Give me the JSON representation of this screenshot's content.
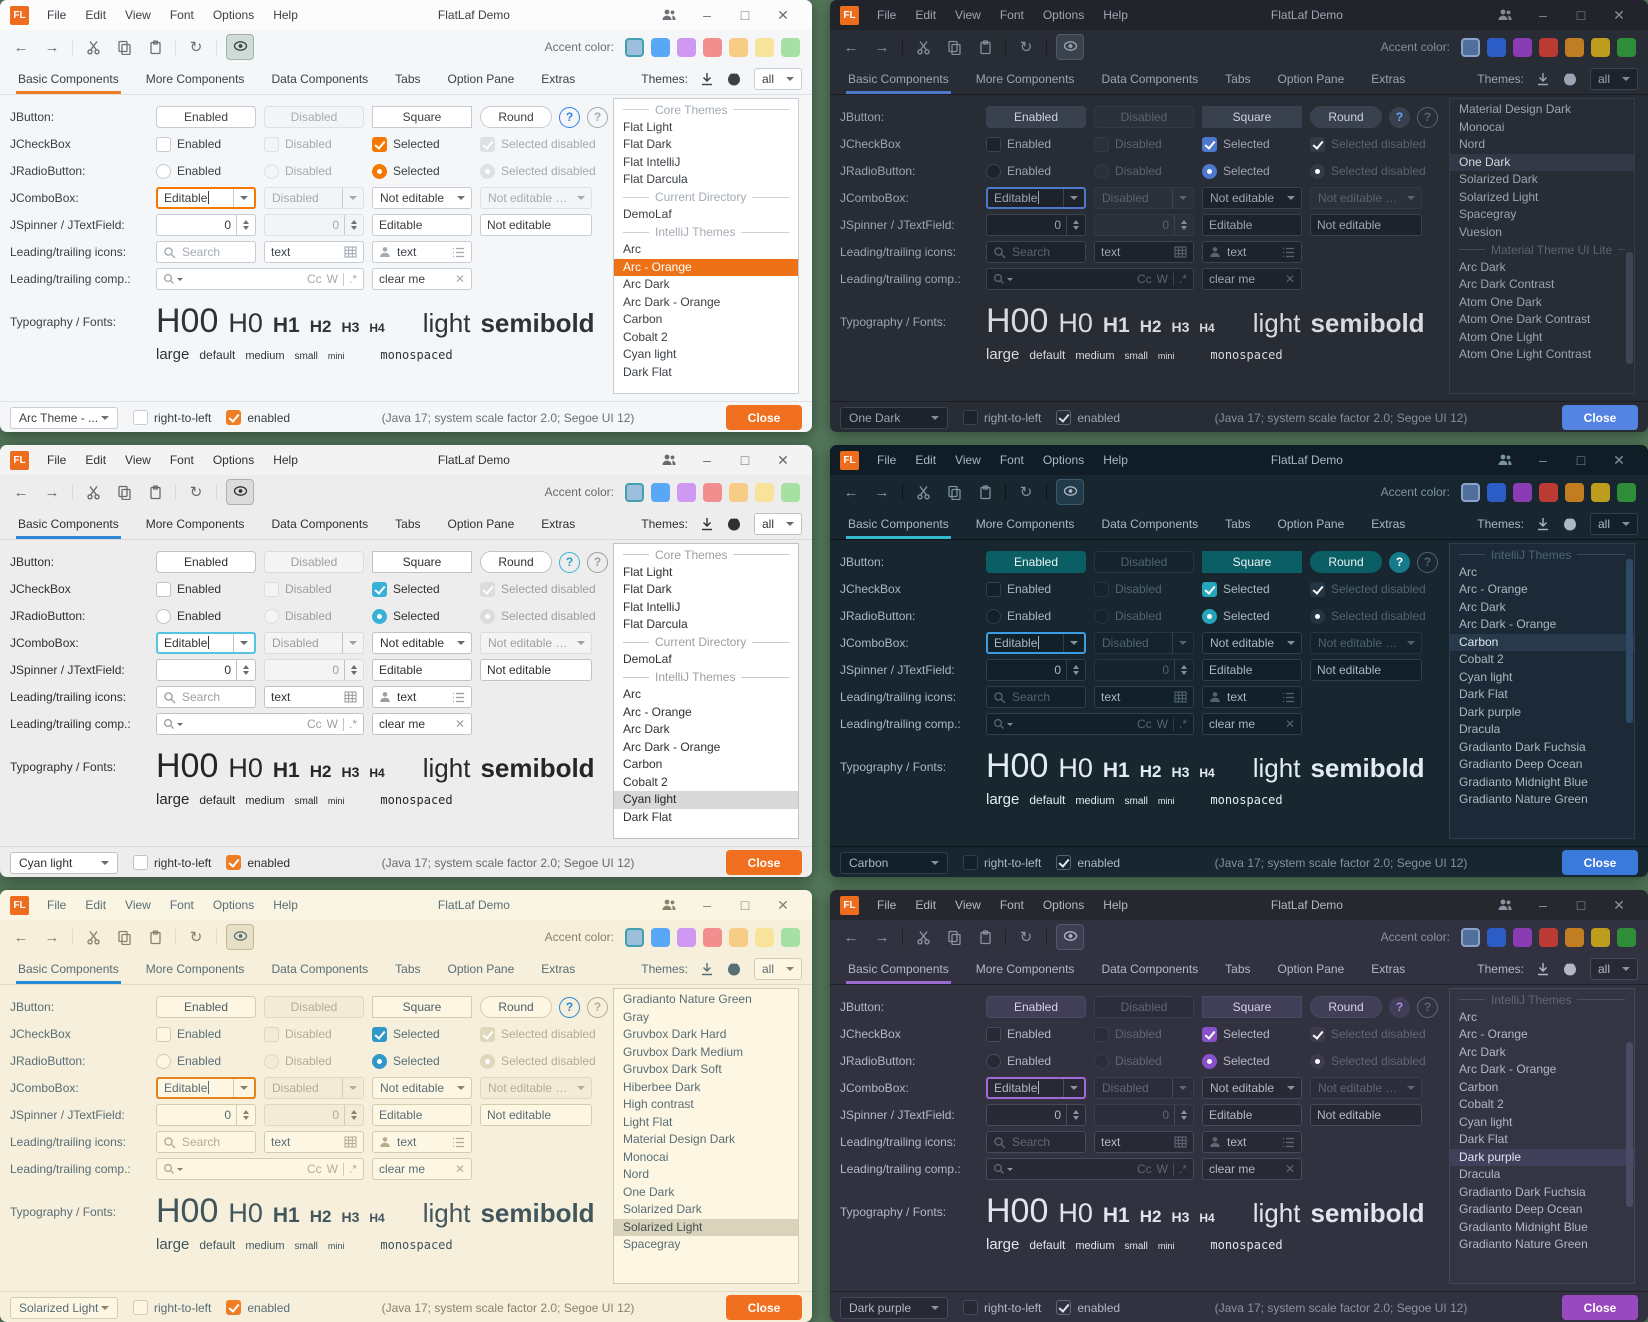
{
  "canvas_background": "#53775a",
  "shared": {
    "titlebar": {
      "logo": "FL",
      "menus": [
        "File",
        "Edit",
        "View",
        "Font",
        "Options",
        "Help"
      ],
      "title": "FlatLaf Demo"
    },
    "toolbar": {
      "accent_label": "Accent color:"
    },
    "tabs": [
      "Basic Components",
      "More Components",
      "Data Components",
      "Tabs",
      "Option Pane",
      "Extras"
    ],
    "themes_label": "Themes:",
    "themes_filter": "all",
    "rows": {
      "jbutton": {
        "label": "JButton:",
        "enabled": "Enabled",
        "disabled": "Disabled",
        "square": "Square",
        "round": "Round",
        "help": "?"
      },
      "jcheckbox": {
        "label": "JCheckBox",
        "enabled": "Enabled",
        "disabled": "Disabled",
        "selected": "Selected",
        "selected_disabled": "Selected disabled"
      },
      "jradiobutton": {
        "label": "JRadioButton:",
        "enabled": "Enabled",
        "disabled": "Disabled",
        "selected": "Selected",
        "selected_disabled": "Selected disabled"
      },
      "jcombobox": {
        "label": "JComboBox:",
        "editable": "Editable",
        "disabled": "Disabled",
        "not_editable": "Not editable",
        "not_editable_disabled": "Not editable dis..."
      },
      "jspinner": {
        "label": "JSpinner / JTextField:",
        "value": "0",
        "value_disabled": "0",
        "editable": "Editable",
        "not_editable": "Not editable"
      },
      "icons_row": {
        "label": "Leading/trailing icons:",
        "search_placeholder": "Search",
        "text1": "text",
        "text2": "text"
      },
      "comp_row": {
        "label": "Leading/trailing comp.:",
        "match_case": "Cc",
        "whole_words": "W",
        "regex": ".*",
        "clear_value": "clear me"
      },
      "typography": {
        "label": "Typography / Fonts:",
        "h00": "H00",
        "h0": "H0",
        "h1": "H1",
        "h2": "H2",
        "h3": "H3",
        "h4": "H4",
        "light": "light",
        "semibold": "semibold",
        "large": "large",
        "default": "default",
        "medium": "medium",
        "small": "small",
        "mini": "mini",
        "monospaced": "monospaced"
      }
    },
    "statusbar": {
      "rtl_label": "right-to-left",
      "enabled_label": "enabled",
      "status": "(Java 17;  system scale factor 2.0; Segoe UI 12)",
      "close_label": "Close"
    }
  },
  "windows": [
    {
      "name": "arc-orange",
      "mode": "light",
      "theme_dropdown": "Arc Theme - ...",
      "swatches": [
        "#9dbfdc",
        "#58a8f7",
        "#cf98f2",
        "#f38e8e",
        "#f7cd85",
        "#f7e49a",
        "#a6e0a3"
      ],
      "colors": {
        "bg": "#f5f6f7",
        "bar": "#fcfcfd",
        "text": "#3b4045",
        "bright": "#2f3338",
        "muted": "#a3abb3",
        "border": "#c6ccd4",
        "field": "#ffffff",
        "btnmainbg": "#ffffff",
        "btnmainfg": "#3b4045",
        "btnborder": "#c6ccd4",
        "accent": "#ee7d24",
        "check": "#f57900",
        "focus": "#f57900",
        "selbg": "#ed7117",
        "selfg": "#ffffff",
        "listbg": "#ffffff",
        "listborder": "#c6ccd4",
        "close": "#f0701f",
        "closefg": "#ffffff",
        "status": "#6b7178",
        "sep": "#dde1e5",
        "helpbg": "transparent",
        "helpborder": "#2d7ff0",
        "helpfg": "#2d7ff0",
        "eyebg": "#cfdcd6",
        "eyeborder": "#9cb4ab",
        "enabledcheck": "#ee7d24",
        "disbg": "#f3f4f6",
        "disborder": "#dde1e5",
        "swselborder": "#43a0b0",
        "scroll": "transparent"
      },
      "list": [
        {
          "t": "header",
          "label": "Core Themes"
        },
        {
          "t": "item",
          "label": "Flat Light"
        },
        {
          "t": "item",
          "label": "Flat Dark"
        },
        {
          "t": "item",
          "label": "Flat IntelliJ"
        },
        {
          "t": "item",
          "label": "Flat Darcula"
        },
        {
          "t": "header",
          "label": "Current Directory"
        },
        {
          "t": "item",
          "label": "DemoLaf"
        },
        {
          "t": "header",
          "label": "IntelliJ Themes"
        },
        {
          "t": "item",
          "label": "Arc"
        },
        {
          "t": "selected",
          "label": "Arc - Orange"
        },
        {
          "t": "item",
          "label": "Arc Dark"
        },
        {
          "t": "item",
          "label": "Arc Dark - Orange"
        },
        {
          "t": "item",
          "label": "Carbon"
        },
        {
          "t": "item",
          "label": "Cobalt 2"
        },
        {
          "t": "item",
          "label": "Cyan light"
        },
        {
          "t": "item",
          "label": "Dark Flat"
        }
      ],
      "scrollbar": null
    },
    {
      "name": "one-dark",
      "mode": "dark",
      "theme_dropdown": "One Dark",
      "swatches": [
        "#50709b",
        "#2c5cc5",
        "#8a3cb4",
        "#bc3a34",
        "#c07d22",
        "#bd9d1e",
        "#2f8c38"
      ],
      "colors": {
        "bg": "#282c34",
        "bar": "#21252b",
        "text": "#9da5b4",
        "bright": "#d7dae0",
        "muted": "#5a6372",
        "border": "#3c4350",
        "field": "#1e222a",
        "btnmainbg": "#3a414e",
        "btnmainfg": "#ccd3e0",
        "btnborder": "#3c4350",
        "accent": "#4d78cc",
        "check": "#4d78cc",
        "focus": "#4d78cc",
        "selbg": "#323845",
        "selfg": "#d7dae0",
        "listbg": "#282c34",
        "listborder": "#363d49",
        "close": "#5583e1",
        "closefg": "#ffffff",
        "status": "#848d9c",
        "sep": "#1a1d23",
        "helpbg": "#3a414e",
        "helpborder": "#3a414e",
        "helpfg": "#6ba3ff",
        "eyebg": "#3a424e",
        "eyeborder": "#505a68",
        "enabledcheck": "#4d78cc",
        "disbg": "#2b303a",
        "disborder": "#343b46",
        "swselborder": "#8aa3cc",
        "scroll": "#3e4654"
      },
      "list": [
        {
          "t": "item",
          "label": "Material Design Dark"
        },
        {
          "t": "item",
          "label": "Monocai"
        },
        {
          "t": "item",
          "label": "Nord"
        },
        {
          "t": "selected",
          "label": "One Dark"
        },
        {
          "t": "item",
          "label": "Solarized Dark"
        },
        {
          "t": "item",
          "label": "Solarized Light"
        },
        {
          "t": "item",
          "label": "Spacegray"
        },
        {
          "t": "item",
          "label": "Vuesion"
        },
        {
          "t": "header",
          "label": "Material Theme UI Lite"
        },
        {
          "t": "item",
          "label": "Arc Dark"
        },
        {
          "t": "item",
          "label": "Arc Dark Contrast"
        },
        {
          "t": "item",
          "label": "Atom One Dark"
        },
        {
          "t": "item",
          "label": "Atom One Dark Contrast"
        },
        {
          "t": "item",
          "label": "Atom One Light"
        },
        {
          "t": "item",
          "label": "Atom One Light Contrast"
        }
      ],
      "scrollbar": {
        "top_pct": 52,
        "height_pct": 38
      }
    },
    {
      "name": "cyan-light",
      "mode": "light",
      "theme_dropdown": "Cyan light",
      "swatches": [
        "#9dbfdc",
        "#58a8f7",
        "#cf98f2",
        "#f38e8e",
        "#f7cd85",
        "#f7e49a",
        "#a6e0a3"
      ],
      "colors": {
        "bg": "#ededed",
        "bar": "#f3f3f3",
        "text": "#303030",
        "bright": "#262626",
        "muted": "#9e9e9e",
        "border": "#c2c2c2",
        "field": "#ffffff",
        "btnmainbg": "#ffffff",
        "btnmainfg": "#303030",
        "btnborder": "#c2c2c2",
        "accent": "#2e86d5",
        "check": "#38b1d6",
        "focus": "#56c3e2",
        "selbg": "#d8d8d8",
        "selfg": "#262626",
        "listbg": "#ffffff",
        "listborder": "#c2c2c2",
        "close": "#f0701f",
        "closefg": "#ffffff",
        "status": "#6a6a6a",
        "sep": "#d9d9d9",
        "helpbg": "transparent",
        "helpborder": "#38b1d6",
        "helpfg": "#2ba3c8",
        "eyebg": "#dcdcdc",
        "eyeborder": "#b0b0b0",
        "enabledcheck": "#ee7d24",
        "disbg": "#f4f4f4",
        "disborder": "#dcdcdc",
        "swselborder": "#43a0b0",
        "scroll": "transparent"
      },
      "list": [
        {
          "t": "header",
          "label": "Core Themes"
        },
        {
          "t": "item",
          "label": "Flat Light"
        },
        {
          "t": "item",
          "label": "Flat Dark"
        },
        {
          "t": "item",
          "label": "Flat IntelliJ"
        },
        {
          "t": "item",
          "label": "Flat Darcula"
        },
        {
          "t": "header",
          "label": "Current Directory"
        },
        {
          "t": "item",
          "label": "DemoLaf"
        },
        {
          "t": "header",
          "label": "IntelliJ Themes"
        },
        {
          "t": "item",
          "label": "Arc"
        },
        {
          "t": "item",
          "label": "Arc - Orange"
        },
        {
          "t": "item",
          "label": "Arc Dark"
        },
        {
          "t": "item",
          "label": "Arc Dark - Orange"
        },
        {
          "t": "item",
          "label": "Carbon"
        },
        {
          "t": "item",
          "label": "Cobalt 2"
        },
        {
          "t": "selected",
          "label": "Cyan light"
        },
        {
          "t": "item",
          "label": "Dark Flat"
        }
      ],
      "scrollbar": null
    },
    {
      "name": "carbon",
      "mode": "dark",
      "theme_dropdown": "Carbon",
      "swatches": [
        "#50709b",
        "#2c5cc5",
        "#8a3cb4",
        "#bc3a34",
        "#c07d22",
        "#bd9d1e",
        "#2f8c38"
      ],
      "colors": {
        "bg": "#182630",
        "bar": "#101c26",
        "text": "#a9b8c4",
        "bright": "#e2ecf2",
        "muted": "#4f6473",
        "border": "#2c4050",
        "field": "#12202a",
        "btnmainbg": "#0b5e64",
        "btnmainfg": "#e8f5f5",
        "btnborder": "#0b5e64",
        "accent": "#35b8ce",
        "check": "#27a5ba",
        "focus": "#3d9be2",
        "selbg": "#27394a",
        "selfg": "#dde9f0",
        "listbg": "#1b2a36",
        "listborder": "#2a3e4e",
        "close": "#3c79dd",
        "closefg": "#ffffff",
        "status": "#7e93a2",
        "sep": "#0b141c",
        "helpbg": "#157a8a",
        "helpborder": "#157a8a",
        "helpfg": "#ffffff",
        "eyebg": "#223a4a",
        "eyeborder": "#3a5a6e",
        "enabledcheck": "#27a5ba",
        "disbg": "#15232d",
        "disborder": "#243644",
        "swselborder": "#8aa3cc",
        "scroll": "#2e4a66"
      },
      "list": [
        {
          "t": "header",
          "label": "IntelliJ Themes"
        },
        {
          "t": "item",
          "label": "Arc"
        },
        {
          "t": "item",
          "label": "Arc - Orange"
        },
        {
          "t": "item",
          "label": "Arc Dark"
        },
        {
          "t": "item",
          "label": "Arc Dark - Orange"
        },
        {
          "t": "selected",
          "label": "Carbon"
        },
        {
          "t": "item",
          "label": "Cobalt 2"
        },
        {
          "t": "item",
          "label": "Cyan light"
        },
        {
          "t": "item",
          "label": "Dark Flat"
        },
        {
          "t": "item",
          "label": "Dark purple"
        },
        {
          "t": "item",
          "label": "Dracula"
        },
        {
          "t": "item",
          "label": "Gradianto Dark Fuchsia"
        },
        {
          "t": "item",
          "label": "Gradianto Deep Ocean"
        },
        {
          "t": "item",
          "label": "Gradianto Midnight Blue"
        },
        {
          "t": "item",
          "label": "Gradianto Nature Green"
        }
      ],
      "scrollbar": {
        "top_pct": 5,
        "height_pct": 56
      }
    },
    {
      "name": "solarized-light",
      "mode": "light",
      "theme_dropdown": "Solarized Light",
      "swatches": [
        "#9dbfdc",
        "#58a8f7",
        "#cf98f2",
        "#f38e8e",
        "#f7cd85",
        "#f7e49a",
        "#a6e0a3"
      ],
      "colors": {
        "bg": "#f6efdc",
        "bar": "#faf4e2",
        "text": "#586e75",
        "bright": "#41555c",
        "muted": "#b5ad92",
        "border": "#d4ccb0",
        "field": "#fdf6e3",
        "btnmainbg": "#fdf6e3",
        "btnmainfg": "#4f6168",
        "btnborder": "#d4ccb0",
        "accent": "#268bd2",
        "check": "#2f98c8",
        "focus": "#e0851e",
        "selbg": "#dad3bc",
        "selfg": "#40504c",
        "listbg": "#fdf6e3",
        "listborder": "#d4ccb0",
        "close": "#f0701f",
        "closefg": "#ffffff",
        "status": "#8a8268",
        "sep": "#e4dcc2",
        "helpbg": "transparent",
        "helpborder": "#268bd2",
        "helpfg": "#268bd2",
        "eyebg": "#e8e0c6",
        "eyeborder": "#c0b795",
        "enabledcheck": "#ee7d24",
        "disbg": "#f2ebd6",
        "disborder": "#e0d8bc",
        "swselborder": "#43a0b0",
        "scroll": "transparent"
      },
      "list": [
        {
          "t": "item",
          "label": "Gradianto Nature Green"
        },
        {
          "t": "item",
          "label": "Gray"
        },
        {
          "t": "item",
          "label": "Gruvbox Dark Hard"
        },
        {
          "t": "item",
          "label": "Gruvbox Dark Medium"
        },
        {
          "t": "item",
          "label": "Gruvbox Dark Soft"
        },
        {
          "t": "item",
          "label": "Hiberbee Dark"
        },
        {
          "t": "item",
          "label": "High contrast"
        },
        {
          "t": "item",
          "label": "Light Flat"
        },
        {
          "t": "item",
          "label": "Material Design Dark"
        },
        {
          "t": "item",
          "label": "Monocai"
        },
        {
          "t": "item",
          "label": "Nord"
        },
        {
          "t": "item",
          "label": "One Dark"
        },
        {
          "t": "item",
          "label": "Solarized Dark"
        },
        {
          "t": "selected",
          "label": "Solarized Light"
        },
        {
          "t": "item",
          "label": "Spacegray"
        }
      ],
      "scrollbar": null
    },
    {
      "name": "dark-purple",
      "mode": "dark",
      "theme_dropdown": "Dark purple",
      "swatches": [
        "#50709b",
        "#2c5cc5",
        "#8a3cb4",
        "#bc3a34",
        "#c07d22",
        "#bd9d1e",
        "#2f8c38"
      ],
      "colors": {
        "bg": "#313140",
        "bar": "#27272f",
        "text": "#b6b6c6",
        "bright": "#e4e4f0",
        "muted": "#646478",
        "border": "#48485e",
        "field": "#292935",
        "btnmainbg": "#413e57",
        "btnmainfg": "#d8d4e8",
        "btnborder": "#48485e",
        "accent": "#9a6ad2",
        "check": "#8851c9",
        "focus": "#a06bd8",
        "selbg": "#413f5a",
        "selfg": "#e4e4f0",
        "listbg": "#343443",
        "listborder": "#44445a",
        "close": "#9849c0",
        "closefg": "#ffffff",
        "status": "#9090a4",
        "sep": "#202028",
        "helpbg": "#413e57",
        "helpborder": "#413e57",
        "helpfg": "#b68ae8",
        "eyebg": "#3e3e52",
        "eyeborder": "#565670",
        "enabledcheck": "#8851c9",
        "disbg": "#2c2c3a",
        "disborder": "#3c3c4e",
        "swselborder": "#8aa3cc",
        "scroll": "#4c4b66"
      },
      "list": [
        {
          "t": "header",
          "label": "IntelliJ Themes"
        },
        {
          "t": "item",
          "label": "Arc"
        },
        {
          "t": "item",
          "label": "Arc - Orange"
        },
        {
          "t": "item",
          "label": "Arc Dark"
        },
        {
          "t": "item",
          "label": "Arc Dark - Orange"
        },
        {
          "t": "item",
          "label": "Carbon"
        },
        {
          "t": "item",
          "label": "Cobalt 2"
        },
        {
          "t": "item",
          "label": "Cyan light"
        },
        {
          "t": "item",
          "label": "Dark Flat"
        },
        {
          "t": "selected",
          "label": "Dark purple"
        },
        {
          "t": "item",
          "label": "Dracula"
        },
        {
          "t": "item",
          "label": "Gradianto Dark Fuchsia"
        },
        {
          "t": "item",
          "label": "Gradianto Deep Ocean"
        },
        {
          "t": "item",
          "label": "Gradianto Midnight Blue"
        },
        {
          "t": "item",
          "label": "Gradianto Nature Green"
        }
      ],
      "scrollbar": {
        "top_pct": 18,
        "height_pct": 56
      }
    }
  ]
}
